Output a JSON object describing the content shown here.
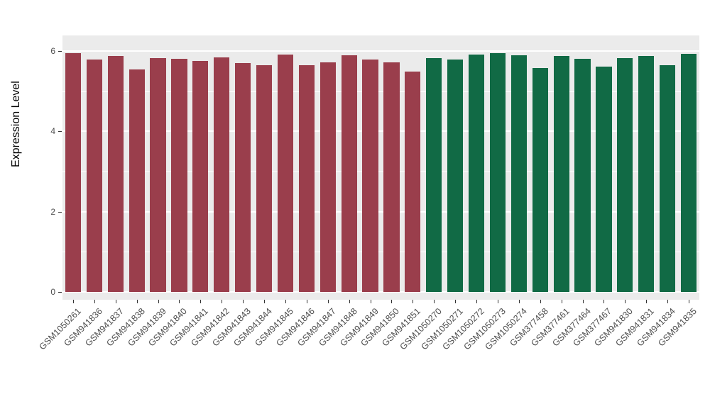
{
  "chart_data": {
    "type": "bar",
    "title": "",
    "xlabel": "",
    "ylabel": "Expression Level",
    "ylim": [
      0,
      6.39
    ],
    "yticks_major": [
      0,
      2,
      4,
      6
    ],
    "yticks_minor": [
      1,
      3,
      5
    ],
    "grid": "on",
    "legend": "none",
    "panel_background": "#EBEBEB",
    "gridline_color": "#FFFFFF",
    "group_colors": {
      "group1": "#9A3E4C",
      "group2": "#116A45"
    },
    "categories": [
      "GSM1050261",
      "GSM941836",
      "GSM941837",
      "GSM941838",
      "GSM941839",
      "GSM941840",
      "GSM941841",
      "GSM941842",
      "GSM941843",
      "GSM941844",
      "GSM941845",
      "GSM941846",
      "GSM941847",
      "GSM941848",
      "GSM941849",
      "GSM941850",
      "GSM941851",
      "GSM1050270",
      "GSM1050271",
      "GSM1050272",
      "GSM1050273",
      "GSM1050274",
      "GSM377458",
      "GSM377461",
      "GSM377464",
      "GSM377467",
      "GSM941830",
      "GSM941831",
      "GSM941834",
      "GSM941835"
    ],
    "values": [
      5.95,
      5.78,
      5.88,
      5.55,
      5.83,
      5.8,
      5.75,
      5.85,
      5.7,
      5.65,
      5.92,
      5.65,
      5.72,
      5.9,
      5.78,
      5.72,
      5.48,
      5.83,
      5.78,
      5.92,
      5.95,
      5.9,
      5.57,
      5.88,
      5.8,
      5.62,
      5.83,
      5.88,
      5.65,
      5.93
    ],
    "bar_colors": [
      "#9A3E4C",
      "#9A3E4C",
      "#9A3E4C",
      "#9A3E4C",
      "#9A3E4C",
      "#9A3E4C",
      "#9A3E4C",
      "#9A3E4C",
      "#9A3E4C",
      "#9A3E4C",
      "#9A3E4C",
      "#9A3E4C",
      "#9A3E4C",
      "#9A3E4C",
      "#9A3E4C",
      "#9A3E4C",
      "#9A3E4C",
      "#116A45",
      "#116A45",
      "#116A45",
      "#116A45",
      "#116A45",
      "#116A45",
      "#116A45",
      "#116A45",
      "#116A45",
      "#116A45",
      "#116A45",
      "#116A45",
      "#116A45"
    ]
  }
}
